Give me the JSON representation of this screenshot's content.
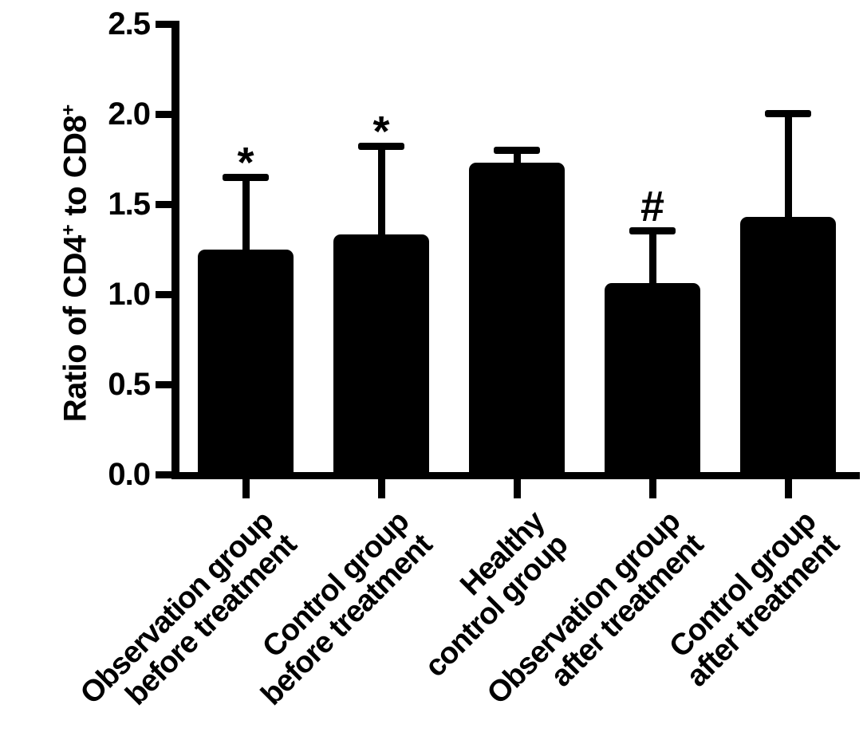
{
  "figure": {
    "background": "#ffffff"
  },
  "chart_data": {
    "type": "bar",
    "title": "",
    "ylabel": "Ratio of CD4+ to CD8+",
    "ylabel_segments": [
      {
        "text": "Ratio of CD4",
        "superscript": false
      },
      {
        "text": "+",
        "superscript": true
      },
      {
        "text": " to CD8",
        "superscript": false
      },
      {
        "text": "+",
        "superscript": true
      }
    ],
    "xlabel": "",
    "categories": [
      [
        "Observation group",
        "before treatment"
      ],
      [
        "Control group",
        "before treatment"
      ],
      [
        "Healthy",
        "control group"
      ],
      [
        "Observation group",
        "after treatment"
      ],
      [
        "Control group",
        "after treatment"
      ]
    ],
    "values": [
      1.25,
      1.33,
      1.73,
      1.06,
      1.43
    ],
    "errors": [
      0.42,
      0.51,
      0.09,
      0.31,
      0.59
    ],
    "error_type": "upper-sd-whisker",
    "annotations": [
      "*",
      "*",
      "",
      "#",
      ""
    ],
    "yticks": [
      0.0,
      0.5,
      1.0,
      1.5,
      2.0,
      2.5
    ],
    "ytick_labels": [
      "0.0",
      "0.5",
      "1.0",
      "1.5",
      "2.0",
      "2.5"
    ],
    "ylim": [
      0,
      2.5
    ],
    "grid": false,
    "legend": null,
    "bar_color": "#000000",
    "axis_color": "#000000",
    "text_color": "#000000"
  }
}
